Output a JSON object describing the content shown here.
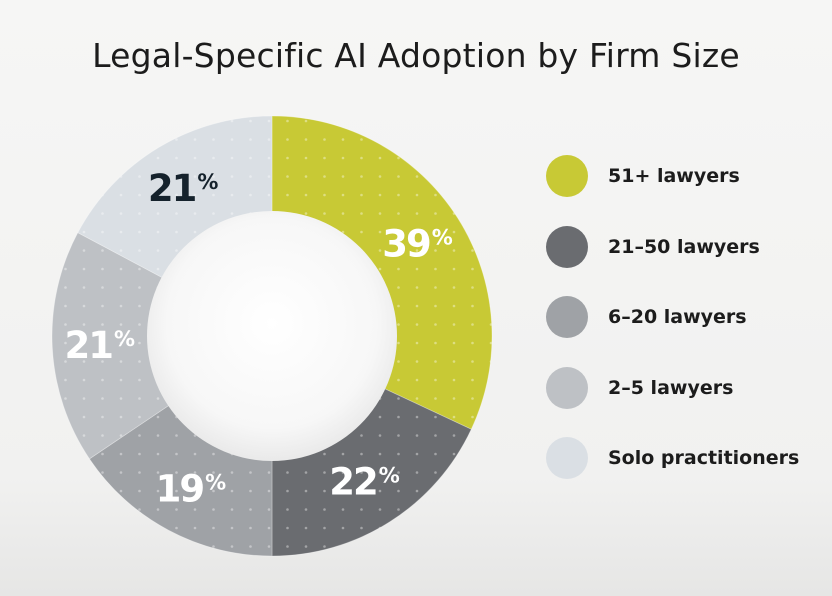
{
  "title": "Legal-Specific AI Adoption by Firm Size",
  "chart_data": {
    "type": "pie",
    "variant": "donut",
    "title": "Legal-Specific AI Adoption by Firm Size",
    "unit": "%",
    "legend_position": "right",
    "slices": [
      {
        "label": "51+ lawyers",
        "value": 39,
        "value_label": "39",
        "color": "#c8c935",
        "label_color": "#ffffff"
      },
      {
        "label": "21–50 lawyers",
        "value": 22,
        "value_label": "22",
        "color": "#6a6c70",
        "label_color": "#ffffff"
      },
      {
        "label": "6–20 lawyers",
        "value": 19,
        "value_label": "19",
        "color": "#9fa2a6",
        "label_color": "#ffffff"
      },
      {
        "label": "2–5 lawyers",
        "value": 21,
        "value_label": "21",
        "color": "#bec1c5",
        "label_color": "#ffffff"
      },
      {
        "label": "Solo practitioners",
        "value": 21,
        "value_label": "21",
        "color": "#dadfe4",
        "label_color": "#15222c"
      }
    ]
  }
}
